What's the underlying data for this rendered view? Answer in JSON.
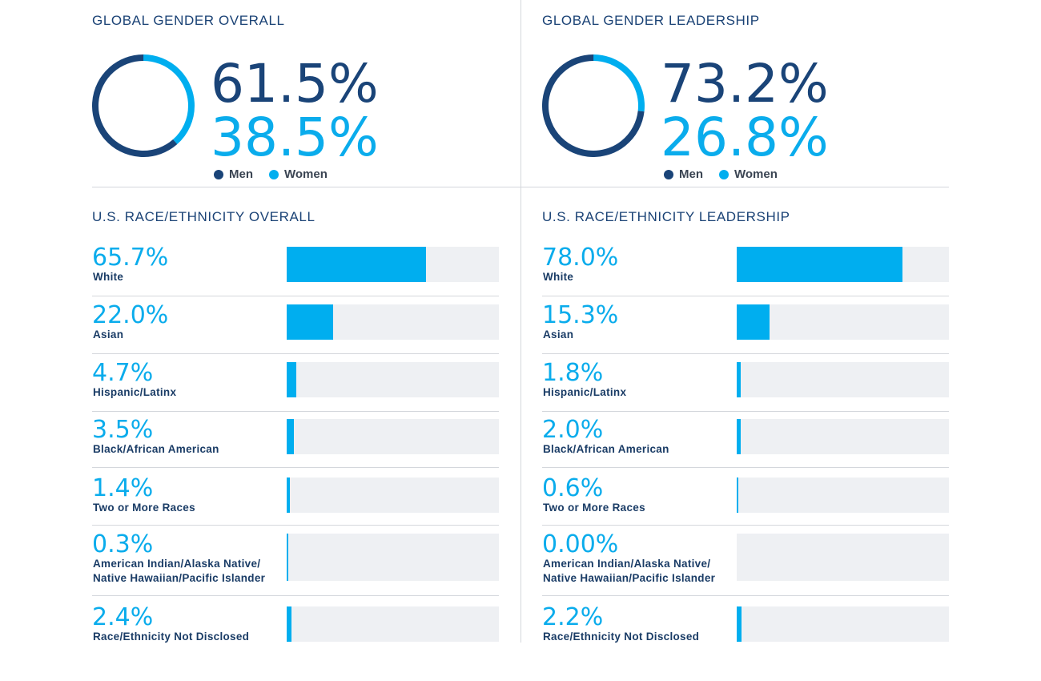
{
  "colors": {
    "men": "#1a4478",
    "women": "#00aeef",
    "track": "#eef0f3"
  },
  "gender_panels": [
    {
      "title": "GLOBAL GENDER OVERALL",
      "men_label": "61.5%",
      "women_label": "38.5%",
      "men_value": 61.5,
      "women_value": 38.5
    },
    {
      "title": "GLOBAL GENDER LEADERSHIP",
      "men_label": "73.2%",
      "women_label": "26.8%",
      "men_value": 73.2,
      "women_value": 26.8
    }
  ],
  "legend": {
    "men": "Men",
    "women": "Women"
  },
  "race_panels": [
    {
      "title": "U.S. RACE/ETHNICITY OVERALL",
      "rows": [
        {
          "label": "White",
          "pct_label": "65.7%",
          "value": 65.7
        },
        {
          "label": "Asian",
          "pct_label": "22.0%",
          "value": 22.0
        },
        {
          "label": "Hispanic/Latinx",
          "pct_label": "4.7%",
          "value": 4.7
        },
        {
          "label": "Black/African American",
          "pct_label": "3.5%",
          "value": 3.5
        },
        {
          "label": "Two or More Races",
          "pct_label": "1.4%",
          "value": 1.4
        },
        {
          "label": "American Indian/Alaska Native/",
          "label2": "Native Hawaiian/Pacific Islander",
          "pct_label": "0.3%",
          "value": 0.3
        },
        {
          "label": "Race/Ethnicity Not Disclosed",
          "pct_label": "2.4%",
          "value": 2.4
        }
      ]
    },
    {
      "title": "U.S. RACE/ETHNICITY LEADERSHIP",
      "rows": [
        {
          "label": "White",
          "pct_label": "78.0%",
          "value": 78.0
        },
        {
          "label": "Asian",
          "pct_label": "15.3%",
          "value": 15.3
        },
        {
          "label": "Hispanic/Latinx",
          "pct_label": "1.8%",
          "value": 1.8
        },
        {
          "label": "Black/African American",
          "pct_label": "2.0%",
          "value": 2.0
        },
        {
          "label": "Two or More Races",
          "pct_label": "0.6%",
          "value": 0.6
        },
        {
          "label": "American Indian/Alaska Native/",
          "label2": "Native Hawaiian/Pacific Islander",
          "pct_label": "0.00%",
          "value": 0.0
        },
        {
          "label": "Race/Ethnicity Not Disclosed",
          "pct_label": "2.2%",
          "value": 2.2
        }
      ]
    }
  ],
  "chart_data": [
    {
      "type": "pie",
      "title": "GLOBAL GENDER OVERALL",
      "categories": [
        "Men",
        "Women"
      ],
      "values": [
        61.5,
        38.5
      ]
    },
    {
      "type": "pie",
      "title": "GLOBAL GENDER LEADERSHIP",
      "categories": [
        "Men",
        "Women"
      ],
      "values": [
        73.2,
        26.8
      ]
    },
    {
      "type": "bar",
      "title": "U.S. RACE/ETHNICITY OVERALL",
      "categories": [
        "White",
        "Asian",
        "Hispanic/Latinx",
        "Black/African American",
        "Two or More Races",
        "American Indian/Alaska Native/Native Hawaiian/Pacific Islander",
        "Race/Ethnicity Not Disclosed"
      ],
      "values": [
        65.7,
        22.0,
        4.7,
        3.5,
        1.4,
        0.3,
        2.4
      ],
      "ylim": [
        0,
        100
      ]
    },
    {
      "type": "bar",
      "title": "U.S. RACE/ETHNICITY LEADERSHIP",
      "categories": [
        "White",
        "Asian",
        "Hispanic/Latinx",
        "Black/African American",
        "Two or More Races",
        "American Indian/Alaska Native/Native Hawaiian/Pacific Islander",
        "Race/Ethnicity Not Disclosed"
      ],
      "values": [
        78.0,
        15.3,
        1.8,
        2.0,
        0.6,
        0.0,
        2.2
      ],
      "ylim": [
        0,
        100
      ]
    }
  ]
}
